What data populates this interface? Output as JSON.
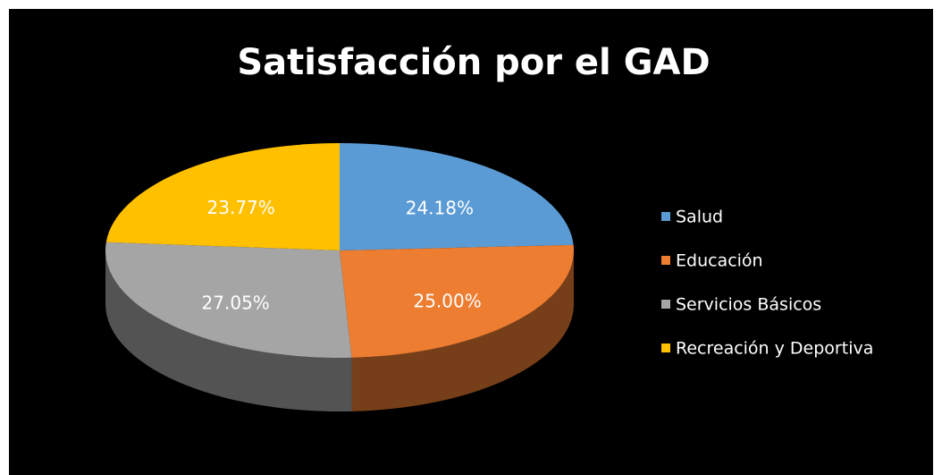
{
  "chart_data": {
    "type": "pie",
    "title": "Satisfacción por el GAD",
    "categories": [
      "Salud",
      "Educación",
      "Servicios Básicos",
      "Recreación y Deportiva"
    ],
    "values": [
      24.18,
      25.0,
      27.05,
      23.77
    ],
    "value_labels": [
      "24.18%",
      "25.00%",
      "27.05%",
      "23.77%"
    ],
    "colors": [
      "#5b9bd5",
      "#ed7d31",
      "#a5a5a5",
      "#ffc000"
    ],
    "legend": "right"
  }
}
